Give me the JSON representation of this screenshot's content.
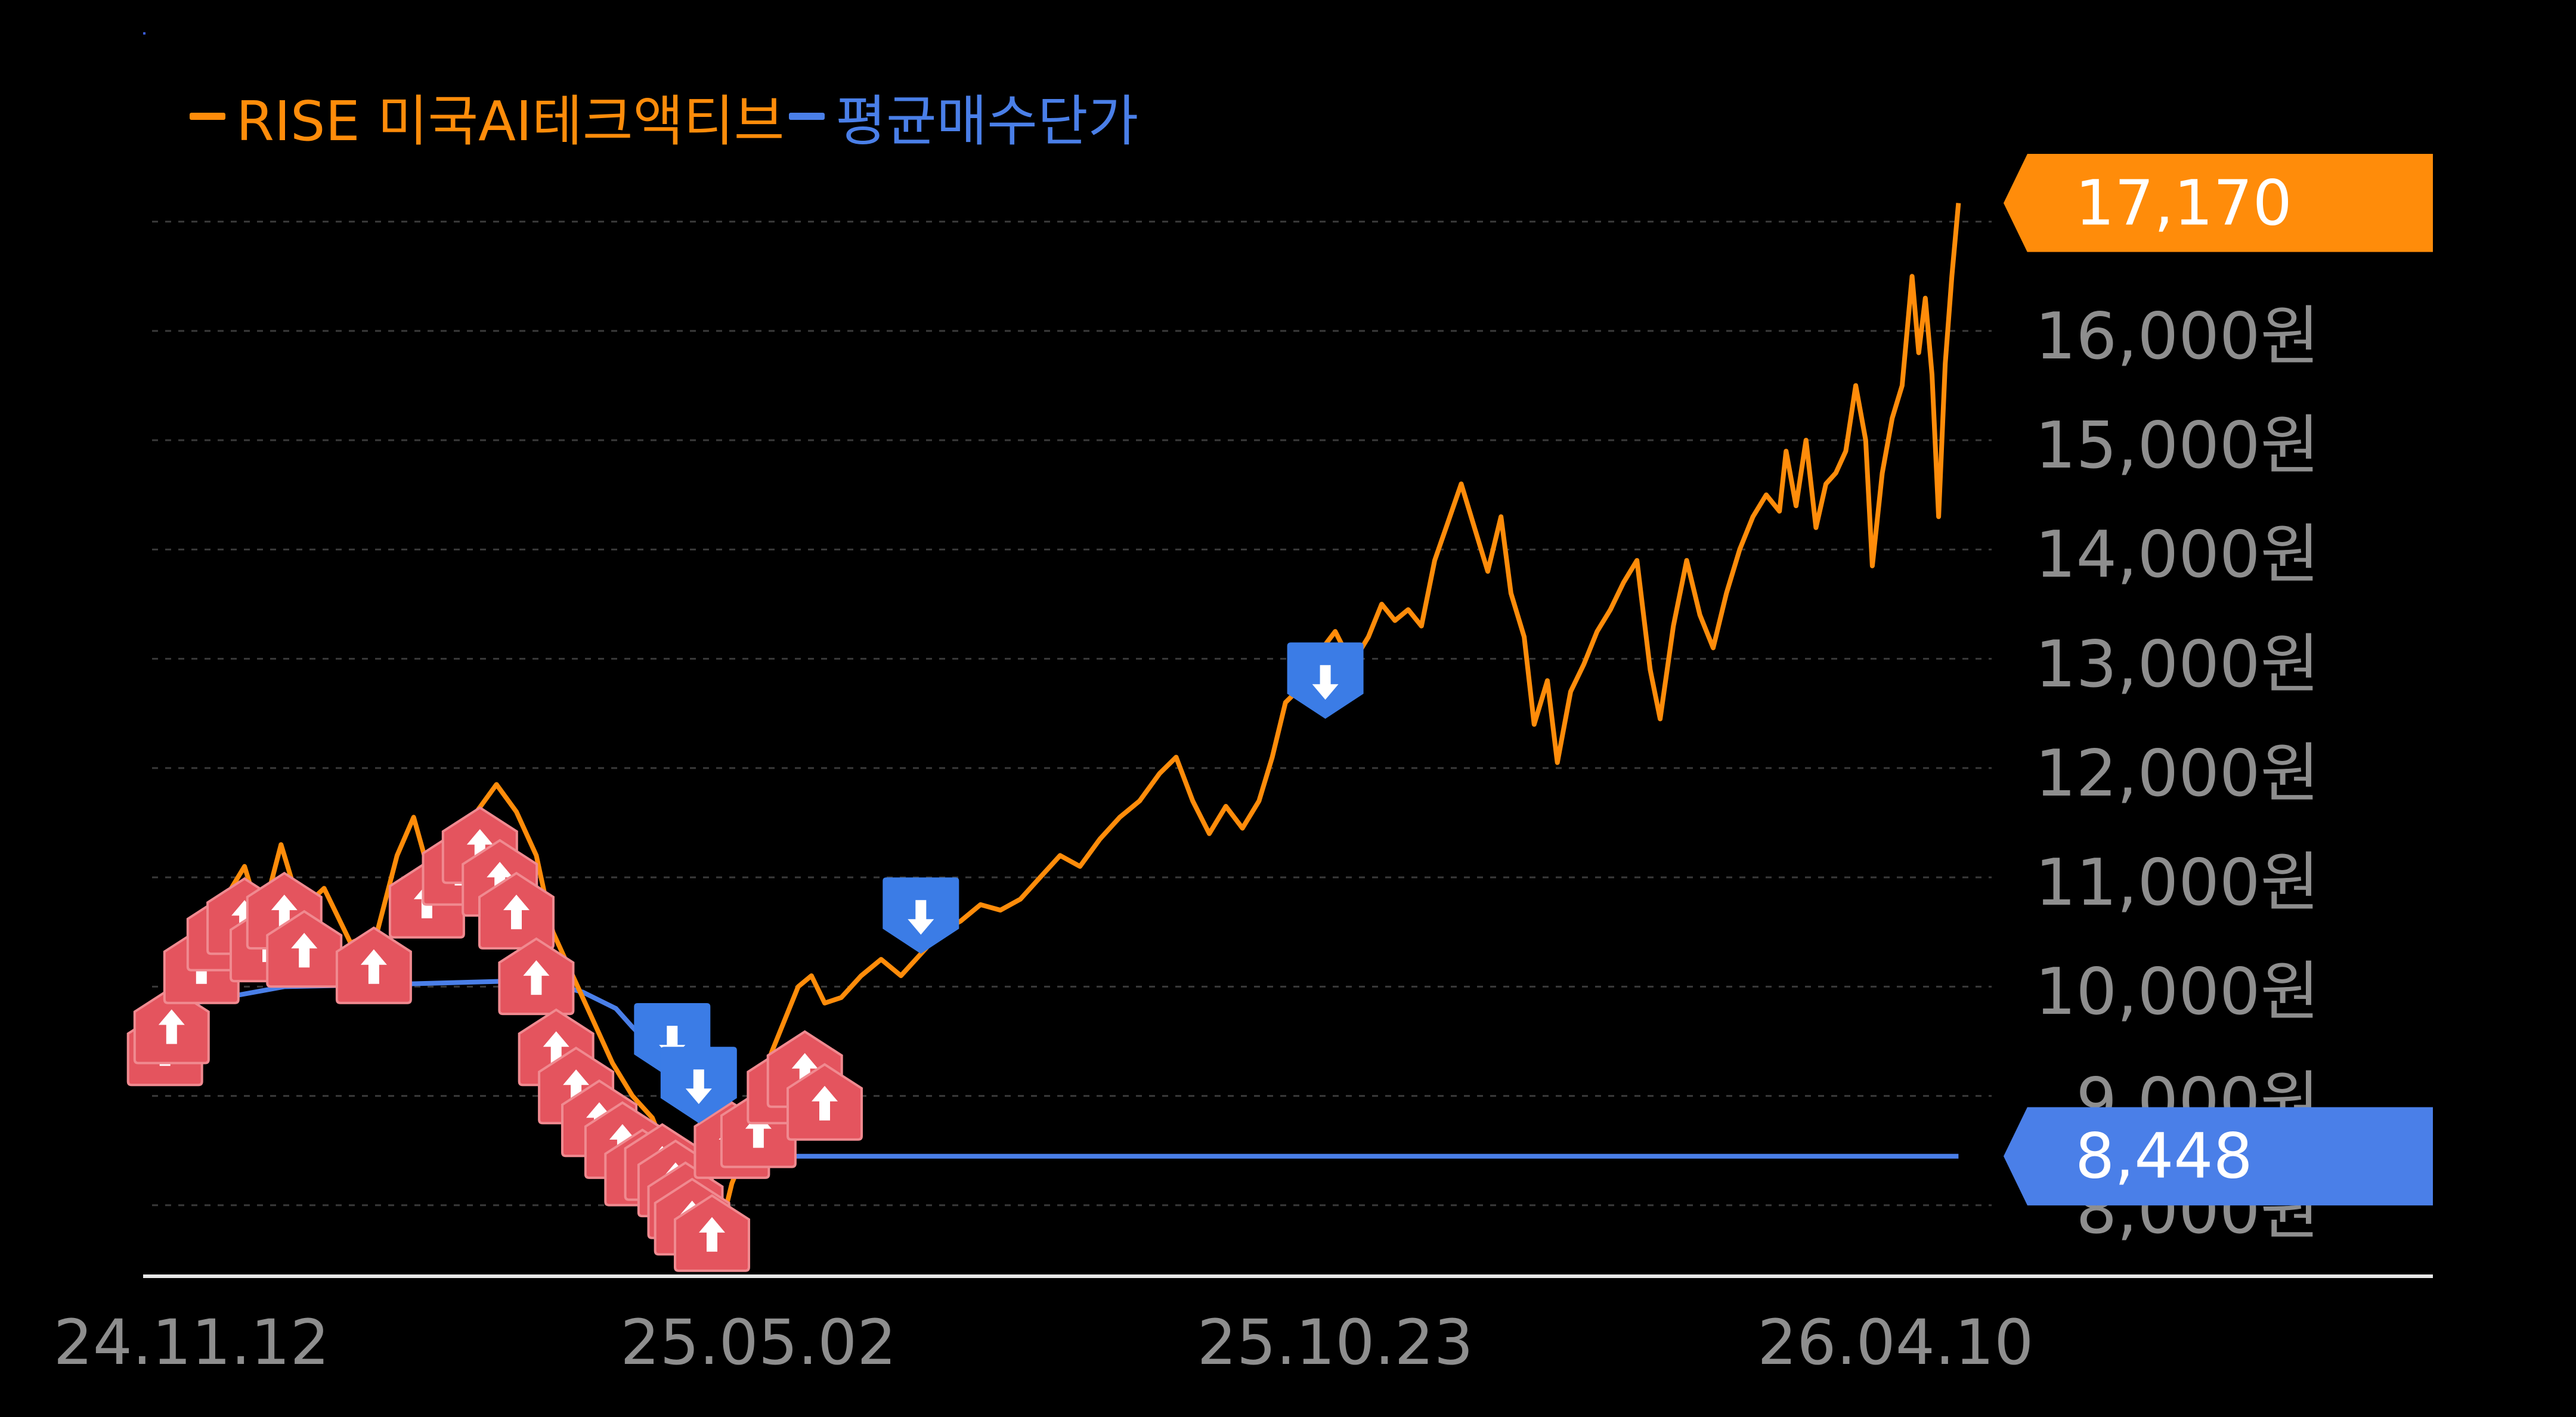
{
  "chart_data": {
    "type": "line",
    "series": [
      {
        "name": "RISE 미국AI테크액티브",
        "color": "#ff8c0a"
      },
      {
        "name": "평균매수단가",
        "color": "#4a7fe8"
      }
    ],
    "y_unit": "원",
    "ylim": [
      7350,
      17500
    ],
    "yticks": [
      "16,000원",
      "15,000원",
      "14,000원",
      "13,000원",
      "12,000원",
      "11,000원",
      "10,000원",
      "9,000원",
      "8,000원"
    ],
    "ytick_values": [
      16000,
      15000,
      14000,
      13000,
      12000,
      11000,
      10000,
      9000,
      8000
    ],
    "xlim": [
      "2024-11-01",
      "2026-04-30"
    ],
    "xticks": [
      "24.11.12",
      "25.05.02",
      "25.10.23",
      "26.04.10"
    ],
    "xtick_dates": [
      "2024-11-12",
      "2025-05-02",
      "2025-10-23",
      "2026-04-10"
    ],
    "grid": true,
    "legend_position": "top-left",
    "price_points": [
      [
        "2024-11-04",
        9650
      ],
      [
        "2024-11-12",
        9800
      ],
      [
        "2024-11-18",
        10300
      ],
      [
        "2024-11-22",
        10800
      ],
      [
        "2024-11-28",
        11100
      ],
      [
        "2024-12-03",
        10600
      ],
      [
        "2024-12-09",
        11300
      ],
      [
        "2024-12-15",
        10700
      ],
      [
        "2024-12-22",
        10900
      ],
      [
        "2024-12-30",
        10400
      ],
      [
        "2025-01-07",
        10500
      ],
      [
        "2025-01-13",
        11200
      ],
      [
        "2025-01-18",
        11550
      ],
      [
        "2025-01-24",
        10900
      ],
      [
        "2025-01-30",
        11400
      ],
      [
        "2025-02-06",
        11600
      ],
      [
        "2025-02-12",
        11850
      ],
      [
        "2025-02-18",
        11600
      ],
      [
        "2025-02-24",
        11200
      ],
      [
        "2025-03-01",
        10500
      ],
      [
        "2025-03-07",
        10100
      ],
      [
        "2025-03-13",
        9700
      ],
      [
        "2025-03-19",
        9300
      ],
      [
        "2025-03-25",
        9000
      ],
      [
        "2025-03-31",
        8800
      ],
      [
        "2025-04-04",
        8500
      ],
      [
        "2025-04-08",
        8200
      ],
      [
        "2025-04-12",
        7900
      ],
      [
        "2025-04-16",
        7500
      ],
      [
        "2025-04-20",
        7700
      ],
      [
        "2025-04-24",
        8200
      ],
      [
        "2025-04-28",
        8500
      ],
      [
        "2025-05-02",
        9000
      ],
      [
        "2025-05-06",
        9400
      ],
      [
        "2025-05-10",
        9700
      ],
      [
        "2025-05-14",
        10000
      ],
      [
        "2025-05-18",
        10100
      ],
      [
        "2025-05-22",
        9850
      ],
      [
        "2025-05-27",
        9900
      ],
      [
        "2025-06-02",
        10100
      ],
      [
        "2025-06-08",
        10250
      ],
      [
        "2025-06-14",
        10100
      ],
      [
        "2025-06-20",
        10300
      ],
      [
        "2025-06-26",
        10500
      ],
      [
        "2025-07-02",
        10600
      ],
      [
        "2025-07-08",
        10750
      ],
      [
        "2025-07-14",
        10700
      ],
      [
        "2025-07-20",
        10800
      ],
      [
        "2025-07-26",
        11000
      ],
      [
        "2025-08-01",
        11200
      ],
      [
        "2025-08-07",
        11100
      ],
      [
        "2025-08-13",
        11350
      ],
      [
        "2025-08-19",
        11550
      ],
      [
        "2025-08-25",
        11700
      ],
      [
        "2025-08-31",
        11950
      ],
      [
        "2025-09-05",
        12100
      ],
      [
        "2025-09-10",
        11700
      ],
      [
        "2025-09-15",
        11400
      ],
      [
        "2025-09-20",
        11650
      ],
      [
        "2025-09-25",
        11450
      ],
      [
        "2025-09-30",
        11700
      ],
      [
        "2025-10-04",
        12100
      ],
      [
        "2025-10-08",
        12600
      ],
      [
        "2025-10-13",
        12750
      ],
      [
        "2025-10-18",
        13050
      ],
      [
        "2025-10-23",
        13250
      ],
      [
        "2025-10-28",
        12950
      ],
      [
        "2025-11-02",
        13200
      ],
      [
        "2025-11-06",
        13500
      ],
      [
        "2025-11-10",
        13350
      ],
      [
        "2025-11-14",
        13450
      ],
      [
        "2025-11-18",
        13300
      ],
      [
        "2025-11-22",
        13900
      ],
      [
        "2025-11-26",
        14250
      ],
      [
        "2025-11-30",
        14600
      ],
      [
        "2025-12-04",
        14200
      ],
      [
        "2025-12-08",
        13800
      ],
      [
        "2025-12-12",
        14300
      ],
      [
        "2025-12-15",
        13600
      ],
      [
        "2025-12-19",
        13200
      ],
      [
        "2025-12-22",
        12400
      ],
      [
        "2025-12-26",
        12800
      ],
      [
        "2025-12-29",
        12050
      ],
      [
        "2026-01-02",
        12700
      ],
      [
        "2026-01-06",
        12950
      ],
      [
        "2026-01-10",
        13250
      ],
      [
        "2026-01-14",
        13450
      ],
      [
        "2026-01-18",
        13700
      ],
      [
        "2026-01-22",
        13900
      ],
      [
        "2026-01-26",
        12900
      ],
      [
        "2026-01-29",
        12450
      ],
      [
        "2026-02-02",
        13300
      ],
      [
        "2026-02-06",
        13900
      ],
      [
        "2026-02-10",
        13400
      ],
      [
        "2026-02-14",
        13100
      ],
      [
        "2026-02-18",
        13600
      ],
      [
        "2026-02-22",
        14000
      ],
      [
        "2026-02-26",
        14300
      ],
      [
        "2026-03-02",
        14500
      ],
      [
        "2026-03-06",
        14350
      ],
      [
        "2026-03-08",
        14900
      ],
      [
        "2026-03-11",
        14400
      ],
      [
        "2026-03-14",
        15000
      ],
      [
        "2026-03-17",
        14200
      ],
      [
        "2026-03-20",
        14600
      ],
      [
        "2026-03-23",
        14700
      ],
      [
        "2026-03-26",
        14900
      ],
      [
        "2026-03-29",
        15500
      ],
      [
        "2026-04-01",
        15000
      ],
      [
        "2026-04-03",
        13850
      ],
      [
        "2026-04-06",
        14700
      ],
      [
        "2026-04-09",
        15200
      ],
      [
        "2026-04-12",
        15500
      ],
      [
        "2026-04-15",
        16500
      ],
      [
        "2026-04-17",
        15800
      ],
      [
        "2026-04-19",
        16300
      ],
      [
        "2026-04-21",
        15600
      ],
      [
        "2026-04-23",
        14300
      ],
      [
        "2026-04-25",
        15700
      ],
      [
        "2026-04-27",
        16500
      ],
      [
        "2026-04-29",
        17170
      ]
    ],
    "avg_points": [
      [
        "2024-11-04",
        9800
      ],
      [
        "2024-12-10",
        10000
      ],
      [
        "2025-01-10",
        10020
      ],
      [
        "2025-02-15",
        10050
      ],
      [
        "2025-02-28",
        10030
      ],
      [
        "2025-03-10",
        9950
      ],
      [
        "2025-03-20",
        9800
      ],
      [
        "2025-03-25",
        9630
      ],
      [
        "2025-04-08",
        9200
      ],
      [
        "2025-04-16",
        8650
      ],
      [
        "2025-04-28",
        8420
      ],
      [
        "2025-05-10",
        8448
      ],
      [
        "2026-04-29",
        8448
      ]
    ],
    "buy_markers": [
      [
        "2024-11-04",
        9450
      ],
      [
        "2024-11-06",
        9650
      ],
      [
        "2024-11-15",
        10200
      ],
      [
        "2024-11-22",
        10500
      ],
      [
        "2024-11-28",
        10650
      ],
      [
        "2024-12-05",
        10400
      ],
      [
        "2024-12-10",
        10700
      ],
      [
        "2024-12-16",
        10350
      ],
      [
        "2025-01-06",
        10200
      ],
      [
        "2025-01-22",
        10800
      ],
      [
        "2025-02-01",
        11100
      ],
      [
        "2025-02-07",
        11300
      ],
      [
        "2025-02-13",
        11000
      ],
      [
        "2025-02-18",
        10700
      ],
      [
        "2025-02-24",
        10100
      ],
      [
        "2025-03-02",
        9450
      ],
      [
        "2025-03-08",
        9100
      ],
      [
        "2025-03-15",
        8800
      ],
      [
        "2025-03-22",
        8600
      ],
      [
        "2025-03-28",
        8350
      ],
      [
        "2025-04-03",
        8400
      ],
      [
        "2025-04-07",
        8250
      ],
      [
        "2025-04-10",
        8050
      ],
      [
        "2025-04-12",
        7900
      ],
      [
        "2025-04-18",
        7750
      ],
      [
        "2025-04-24",
        8600
      ],
      [
        "2025-05-02",
        8700
      ],
      [
        "2025-05-10",
        9100
      ],
      [
        "2025-05-16",
        9250
      ],
      [
        "2025-05-22",
        8950
      ]
    ],
    "sell_markers": [
      [
        "2025-04-06",
        9500
      ],
      [
        "2025-04-14",
        9100
      ],
      [
        "2025-06-20",
        10650
      ],
      [
        "2025-10-20",
        12800
      ]
    ],
    "last_price_label": "17,170",
    "last_price_value": 17170,
    "avg_price_label": "8,448",
    "avg_price_value": 8448
  }
}
